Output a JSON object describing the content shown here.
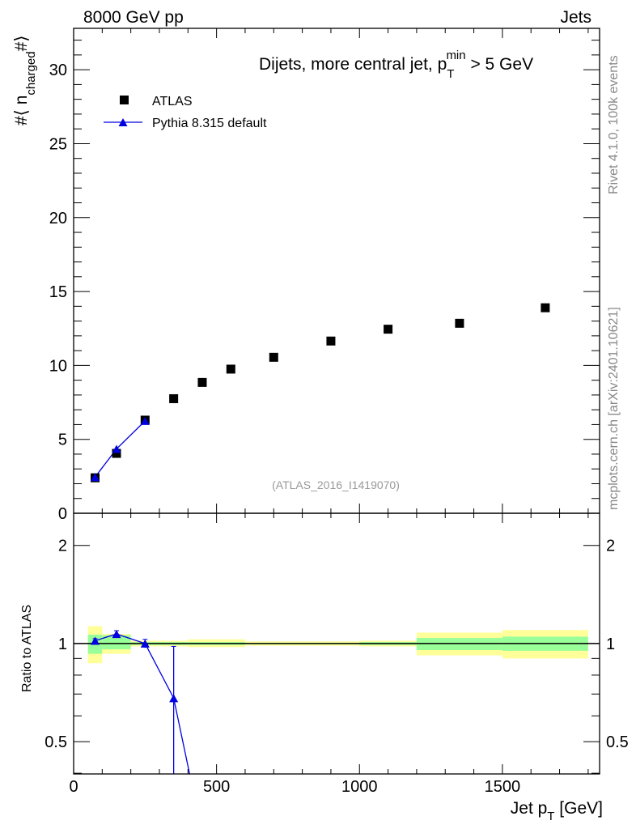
{
  "header": {
    "left": "8000 GeV pp",
    "right": "Jets"
  },
  "side": {
    "rivet": "Rivet 4.1.0,  100k events",
    "mcplots": "mcplots.cern.ch [arXiv:2401.10621]"
  },
  "watermark": "(ATLAS_2016_I1419070)",
  "colors": {
    "data": "#000000",
    "mc": "#0000e0",
    "band_outer": "#ffff99",
    "band_inner": "#99ff99"
  },
  "chart_data": [
    {
      "type": "scatter",
      "title": "Dijets, more central jet, p_T^min > 5 GeV",
      "title_main": "Dijets, more central jet, p",
      "title_sub": "T",
      "title_sup": "min",
      "title_tail": " > 5 GeV",
      "ylabel": "#⟨ n_charged #⟩",
      "ylabel_a": "#⟨ n",
      "ylabel_sub": "charged",
      "ylabel_b": "#⟩",
      "xlim": [
        0,
        1840
      ],
      "ylim": [
        0,
        32.8
      ],
      "yticks": [
        0,
        5,
        10,
        15,
        20,
        25,
        30
      ],
      "legend": {
        "placement": "top-left",
        "entries": [
          "ATLAS",
          "Pythia 8.315 default"
        ]
      },
      "series": [
        {
          "name": "ATLAS",
          "x": [
            75,
            150,
            250,
            350,
            450,
            550,
            700,
            900,
            1100,
            1350,
            1650
          ],
          "y": [
            2.4,
            4.05,
            6.3,
            7.75,
            8.85,
            9.75,
            10.55,
            11.65,
            12.45,
            12.85,
            13.9
          ]
        },
        {
          "name": "Pythia 8.315 default",
          "x": [
            75,
            150,
            250
          ],
          "y": [
            2.45,
            4.35,
            6.25
          ]
        }
      ]
    },
    {
      "type": "line",
      "ylabel": "Ratio to ATLAS",
      "xlabel": "Jet p_T [GeV]",
      "xlabel_a": "Jet p",
      "xlabel_sub": "T",
      "xlabel_b": " [GeV]",
      "xlim": [
        0,
        1840
      ],
      "ylim": [
        0.398,
        2.51
      ],
      "yscale": "log",
      "xticks": [
        0,
        500,
        1000,
        1500
      ],
      "yticks": [
        0.5,
        1,
        2
      ],
      "bands": {
        "edges": [
          50,
          100,
          200,
          400,
          600,
          1000,
          1200,
          1500,
          1800
        ],
        "outer_lo": [
          0.87,
          0.93,
          0.98,
          0.975,
          0.985,
          0.98,
          0.92,
          0.9
        ],
        "outer_hi": [
          1.13,
          1.07,
          1.02,
          1.03,
          1.015,
          1.02,
          1.08,
          1.1
        ],
        "inner_lo": [
          0.93,
          0.96,
          0.99,
          0.99,
          0.995,
          0.99,
          0.955,
          0.95
        ],
        "inner_hi": [
          1.065,
          1.06,
          1.01,
          1.01,
          1.005,
          1.01,
          1.04,
          1.05
        ]
      },
      "series": [
        {
          "name": "Pythia 8.315 default",
          "x": [
            75,
            150,
            250,
            350,
            450
          ],
          "y": [
            1.02,
            1.07,
            1.0,
            0.68,
            0.26
          ],
          "err": [
            0.015,
            0.025,
            0.03,
            0.3,
            0
          ]
        }
      ]
    }
  ]
}
